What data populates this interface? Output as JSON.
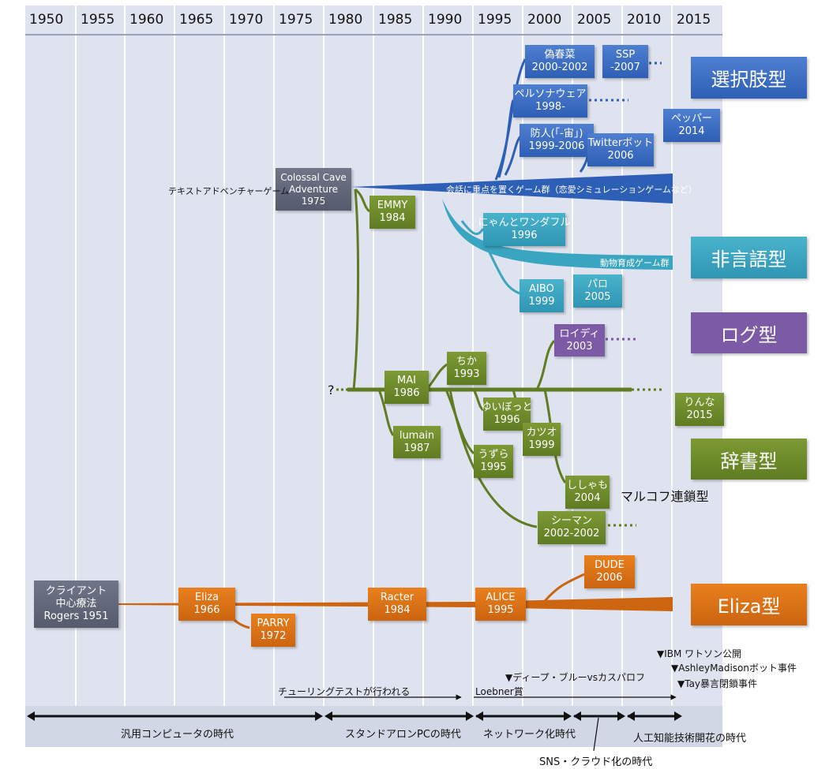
{
  "years": [
    "1950",
    "1955",
    "1960",
    "1965",
    "1970",
    "1975",
    "1980",
    "1985",
    "1990",
    "1995",
    "2000",
    "2005",
    "2010",
    "2015"
  ],
  "types": {
    "choice": "選択肢型",
    "nonverbal": "非言語型",
    "log": "ログ型",
    "dictionary": "辞書型",
    "eliza": "Eliza型"
  },
  "boxes": {
    "nisesyunsai": [
      "偽春菜",
      "2000-2002"
    ],
    "ssp": [
      "SSP",
      "-2007"
    ],
    "persona": [
      "ペルソナウェア",
      "1998-"
    ],
    "bojin": [
      "防人(｢-宙｣)",
      "1999-2006"
    ],
    "twitterbot": [
      "Twitterボット",
      "2006"
    ],
    "pepper": [
      "ペッパー",
      "2014"
    ],
    "colossal": [
      "Colossal Cave",
      "Adventure",
      "1975"
    ],
    "emmy": [
      "EMMY",
      "1984"
    ],
    "nyan": [
      "にゃんとワンダフル",
      "1996"
    ],
    "aibo": [
      "AIBO",
      "1999"
    ],
    "paro": [
      "パロ",
      "2005"
    ],
    "roidi": [
      "ロイディ",
      "2003"
    ],
    "chika": [
      "ちか",
      "1993"
    ],
    "mai": [
      "MAI",
      "1986"
    ],
    "rinna": [
      "りんな",
      "2015"
    ],
    "yuibot": [
      "ゆいぼっと",
      "1996"
    ],
    "lumain": [
      "lumain",
      "1987"
    ],
    "katsuo": [
      "カツオ",
      "1999"
    ],
    "uzura": [
      "うずら",
      "1995"
    ],
    "shishamo": [
      "ししゃも",
      "2004"
    ],
    "seaman": [
      "シーマン",
      "2002-2002"
    ],
    "dude": [
      "DUDE",
      "2006"
    ],
    "client": [
      "クライアント",
      "中心療法",
      "Rogers 1951"
    ],
    "eliza": [
      "Eliza",
      "1966"
    ],
    "racter": [
      "Racter",
      "1984"
    ],
    "alice": [
      "ALICE",
      "1995"
    ],
    "parry": [
      "PARRY",
      "1972"
    ]
  },
  "labels": {
    "text_adventure": "テキストアドベンチャーゲーム",
    "conversation_games": "会話に重点を置くゲーム群（恋愛シミュレーションゲームなど）",
    "pet_games": "動物育成ゲーム群",
    "question": "?",
    "markov": "マルコフ連鎖型"
  },
  "events": {
    "watson": "▼IBM ワトソン公開",
    "ashley": "▼AshleyMadisonボット事件",
    "tay": "▼Tay暴言閉鎖事件",
    "deepblue": "▼ディープ・ブルーvsカスパロフ",
    "turing": "チューリングテストが行われる",
    "loebner": "Loebner賞"
  },
  "eras": {
    "mainframe": "汎用コンピュータの時代",
    "standalone": "スタンドアロンPCの時代",
    "network": "ネットワーク化時代",
    "ai": "人工知能技術開花の時代",
    "sns": "SNS・クラウド化の時代"
  },
  "colors": {
    "blue": "#2e5fb6",
    "teal": "#2f95b3",
    "green": "#5f7c22",
    "orange": "#cc6410",
    "purple": "#7d5aa6",
    "gray": "#555b6c",
    "column": "#dfe3ef"
  }
}
